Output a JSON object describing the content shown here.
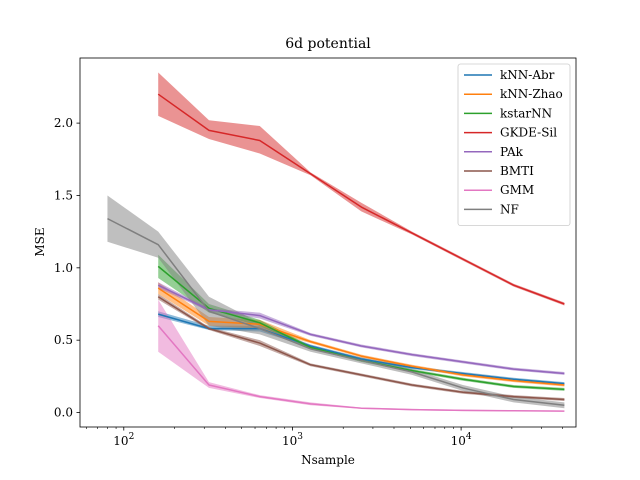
{
  "chart_data": {
    "type": "line",
    "title": "6d potential",
    "xlabel": "Nsample",
    "ylabel": "MSE",
    "xscale": "log",
    "xlim": [
      55,
      48000
    ],
    "ylim": [
      -0.1,
      2.45
    ],
    "x_ticks": [
      {
        "value": 100,
        "base": "10",
        "exp": "2"
      },
      {
        "value": 1000,
        "base": "10",
        "exp": "3"
      },
      {
        "value": 10000,
        "base": "10",
        "exp": "4"
      }
    ],
    "y_ticks": [
      {
        "value": 0.0,
        "label": "0.0"
      },
      {
        "value": 0.5,
        "label": "0.5"
      },
      {
        "value": 1.0,
        "label": "1.0"
      },
      {
        "value": 1.5,
        "label": "1.5"
      },
      {
        "value": 2.0,
        "label": "2.0"
      }
    ],
    "legend_position": "top-right",
    "series": [
      {
        "name": "kNN-Abr",
        "color": "#1f77b4",
        "x": [
          160,
          320,
          640,
          1280,
          2560,
          5120,
          10240,
          20480,
          40960
        ],
        "y": [
          0.68,
          0.58,
          0.58,
          0.46,
          0.37,
          0.31,
          0.27,
          0.23,
          0.2
        ],
        "lower": [
          0.66,
          0.57,
          0.56,
          0.45,
          0.36,
          0.3,
          0.26,
          0.22,
          0.19
        ],
        "upper": [
          0.7,
          0.6,
          0.6,
          0.47,
          0.38,
          0.32,
          0.28,
          0.24,
          0.21
        ]
      },
      {
        "name": "kNN-Zhao",
        "color": "#ff7f0e",
        "x": [
          160,
          320,
          640,
          1280,
          2560,
          5120,
          10240,
          20480,
          40960
        ],
        "y": [
          0.86,
          0.63,
          0.61,
          0.49,
          0.39,
          0.32,
          0.26,
          0.22,
          0.19
        ],
        "lower": [
          0.82,
          0.6,
          0.58,
          0.48,
          0.38,
          0.31,
          0.25,
          0.21,
          0.18
        ],
        "upper": [
          0.9,
          0.66,
          0.64,
          0.5,
          0.4,
          0.33,
          0.27,
          0.23,
          0.2
        ]
      },
      {
        "name": "kstarNN",
        "color": "#2ca02c",
        "x": [
          160,
          320,
          640,
          1280,
          2560,
          5120,
          10240,
          20480,
          40960
        ],
        "y": [
          1.01,
          0.72,
          0.62,
          0.45,
          0.36,
          0.29,
          0.23,
          0.18,
          0.16
        ],
        "lower": [
          0.93,
          0.69,
          0.6,
          0.44,
          0.35,
          0.28,
          0.22,
          0.17,
          0.15
        ],
        "upper": [
          1.09,
          0.75,
          0.64,
          0.46,
          0.37,
          0.3,
          0.24,
          0.19,
          0.17
        ]
      },
      {
        "name": "GKDE-Sil",
        "color": "#d62728",
        "x": [
          160,
          320,
          640,
          1280,
          2560,
          5120,
          10240,
          20480,
          40960
        ],
        "y": [
          2.2,
          1.95,
          1.88,
          1.65,
          1.42,
          1.24,
          1.06,
          0.88,
          0.75
        ],
        "lower": [
          2.05,
          1.89,
          1.79,
          1.64,
          1.39,
          1.23,
          1.05,
          0.87,
          0.74
        ],
        "upper": [
          2.35,
          2.02,
          1.98,
          1.66,
          1.45,
          1.25,
          1.07,
          0.89,
          0.76
        ]
      },
      {
        "name": "PAk",
        "color": "#9467bd",
        "x": [
          160,
          320,
          640,
          1280,
          2560,
          5120,
          10240,
          20480,
          40960
        ],
        "y": [
          0.88,
          0.71,
          0.67,
          0.54,
          0.46,
          0.4,
          0.35,
          0.3,
          0.27
        ],
        "lower": [
          0.86,
          0.7,
          0.65,
          0.53,
          0.45,
          0.39,
          0.34,
          0.29,
          0.26
        ],
        "upper": [
          0.9,
          0.72,
          0.69,
          0.55,
          0.47,
          0.41,
          0.36,
          0.31,
          0.28
        ]
      },
      {
        "name": "BMTI",
        "color": "#8c564b",
        "x": [
          160,
          320,
          640,
          1280,
          2560,
          5120,
          10240,
          20480,
          40960
        ],
        "y": [
          0.8,
          0.58,
          0.48,
          0.33,
          0.26,
          0.19,
          0.14,
          0.11,
          0.09
        ],
        "lower": [
          0.78,
          0.57,
          0.46,
          0.32,
          0.25,
          0.18,
          0.13,
          0.1,
          0.08
        ],
        "upper": [
          0.82,
          0.59,
          0.5,
          0.34,
          0.27,
          0.2,
          0.15,
          0.12,
          0.1
        ]
      },
      {
        "name": "GMM",
        "color": "#e377c2",
        "x": [
          160,
          320,
          640,
          1280,
          2560,
          5120,
          10240,
          20480,
          40960
        ],
        "y": [
          0.6,
          0.19,
          0.11,
          0.06,
          0.03,
          0.02,
          0.015,
          0.012,
          0.01
        ],
        "lower": [
          0.42,
          0.17,
          0.1,
          0.05,
          0.025,
          0.015,
          0.01,
          0.008,
          0.006
        ],
        "upper": [
          0.78,
          0.21,
          0.12,
          0.07,
          0.035,
          0.025,
          0.02,
          0.016,
          0.014
        ]
      },
      {
        "name": "NF",
        "color": "#7f7f7f",
        "x": [
          80,
          160,
          320,
          640,
          1280,
          2560,
          5120,
          10240,
          20480,
          40960
        ],
        "y": [
          1.34,
          1.16,
          0.7,
          0.58,
          0.44,
          0.36,
          0.28,
          0.17,
          0.09,
          0.05
        ],
        "lower": [
          1.18,
          1.07,
          0.6,
          0.54,
          0.42,
          0.34,
          0.26,
          0.15,
          0.07,
          0.03
        ],
        "upper": [
          1.5,
          1.25,
          0.8,
          0.62,
          0.46,
          0.38,
          0.3,
          0.19,
          0.11,
          0.07
        ]
      }
    ]
  }
}
